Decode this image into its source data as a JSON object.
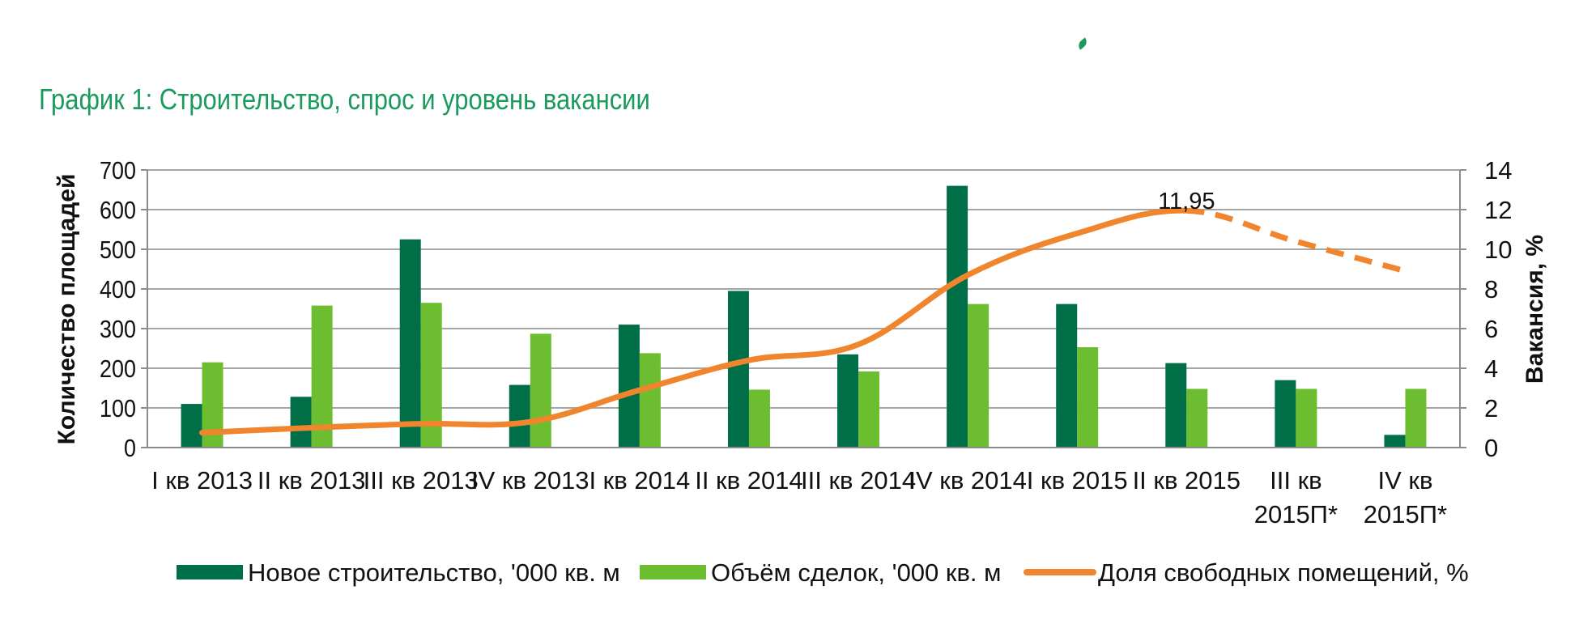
{
  "chart_data": {
    "type": "bar",
    "title": "График 1: Строительство, спрос и уровень вакансии",
    "categories": [
      "I кв 2013",
      "II кв 2013",
      "III кв 2013",
      "IV кв 2013",
      "I кв 2014",
      "II кв 2014",
      "III кв 2014",
      "IV кв 2014",
      "I кв 2015",
      "II кв 2015",
      "III кв 2015П*",
      "IV кв 2015П*"
    ],
    "category_lines": [
      [
        "I кв 2013"
      ],
      [
        "II кв 2013"
      ],
      [
        "III кв 2013"
      ],
      [
        "IV кв 2013"
      ],
      [
        "I кв 2014"
      ],
      [
        "II кв 2014"
      ],
      [
        "III кв 2014"
      ],
      [
        "IV кв 2014"
      ],
      [
        "I кв 2015"
      ],
      [
        "II кв 2015"
      ],
      [
        "III кв",
        "2015П*"
      ],
      [
        "IV кв",
        "2015П*"
      ]
    ],
    "ylabel": "Количество площадей",
    "y2label": "Вакансия, %",
    "ylim": [
      0,
      700
    ],
    "y2lim": [
      0,
      14
    ],
    "yticks": [
      "0",
      "100",
      "200",
      "300",
      "400",
      "500",
      "600",
      "700"
    ],
    "y2ticks": [
      "0",
      "2",
      "4",
      "6",
      "8",
      "10",
      "12",
      "14"
    ],
    "grid": true,
    "legend_position": "bottom",
    "series": [
      {
        "name": "Новое строительство, '000 кв. м",
        "type": "bar",
        "axis": "left",
        "color": "#006e46",
        "values": [
          110,
          128,
          525,
          158,
          310,
          395,
          235,
          660,
          362,
          213,
          170,
          32
        ]
      },
      {
        "name": "Объём сделок, '000 кв. м",
        "type": "bar",
        "axis": "left",
        "color": "#6dbd31",
        "values": [
          215,
          358,
          365,
          287,
          238,
          146,
          192,
          362,
          253,
          148,
          148,
          148
        ]
      },
      {
        "name": "Доля свободных помещений, %",
        "type": "line",
        "axis": "right",
        "color": "#f0852d",
        "values": [
          0.75,
          1.0,
          1.2,
          1.3,
          2.9,
          4.4,
          5.2,
          8.7,
          10.8,
          11.95,
          10.4,
          8.9
        ],
        "forecast_from_index": 9
      }
    ],
    "annotations": [
      {
        "text": "11,95",
        "category_index": 9,
        "series_index": 2
      }
    ]
  }
}
